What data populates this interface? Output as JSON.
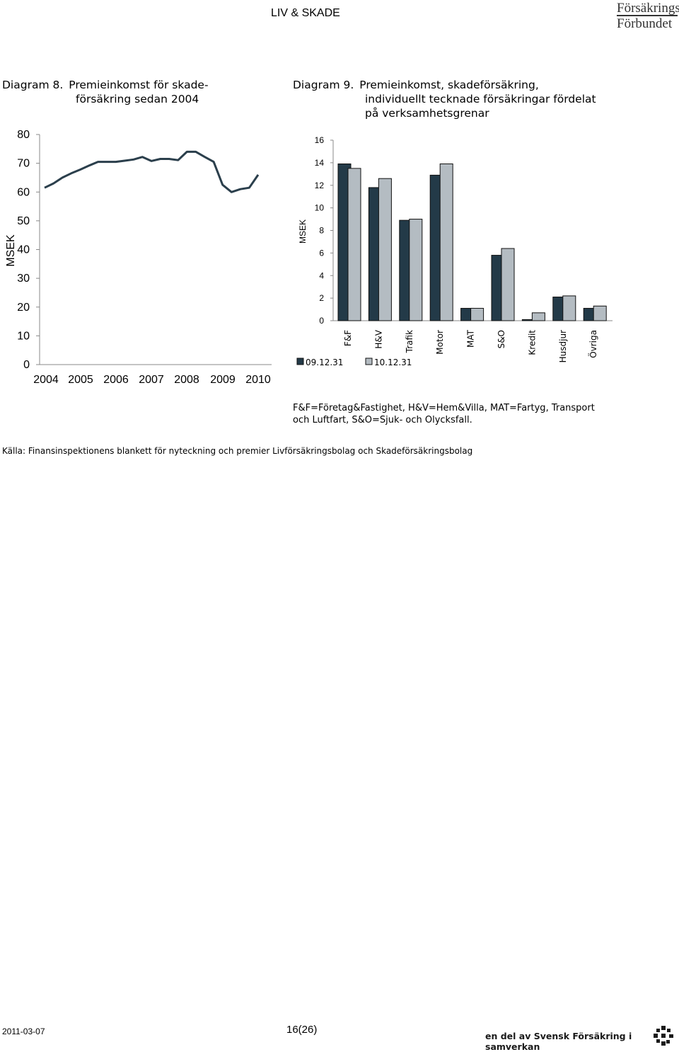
{
  "header": {
    "title": "LIV & SKADE",
    "logo_line1": "Försäkrings",
    "logo_line2": "Förbundet"
  },
  "diagram8": {
    "number": "Diagram 8.",
    "title_line1": "Premieinkomst för skade-",
    "title_line2": "försäkring sedan 2004"
  },
  "diagram9": {
    "number": "Diagram 9.",
    "title_line1": "Premieinkomst, skadeförsäkring,",
    "title_line2": "individuellt tecknade försäkringar fördelat",
    "title_line3": "på verksamhetsgrenar"
  },
  "chart_data": [
    {
      "type": "line",
      "ylabel": "MSEK",
      "ylim": [
        0,
        80
      ],
      "yticks": [
        "0",
        "10",
        "20",
        "30",
        "40",
        "50",
        "60",
        "70",
        "80"
      ],
      "xticks": [
        "2004",
        "2005",
        "2006",
        "2007",
        "2008",
        "2009",
        "2010"
      ],
      "grid": false,
      "color": "#2b3f4c",
      "values": [
        61.5,
        63,
        65,
        66.5,
        67.8,
        69.2,
        70.5,
        70.5,
        70.5,
        70.9,
        71.3,
        72.2,
        70.8,
        71.5,
        71.5,
        71.1,
        74,
        74,
        72.2,
        70.5,
        62.5,
        60,
        61,
        61.5,
        66
      ]
    },
    {
      "type": "bar",
      "ylabel": "MSEK",
      "ylim": [
        0,
        16
      ],
      "yticks": [
        "0",
        "2",
        "4",
        "6",
        "8",
        "10",
        "12",
        "14",
        "16"
      ],
      "categories": [
        "F&F",
        "H&V",
        "Trafik",
        "Motor",
        "MAT",
        "S&O",
        "Kredit",
        "Husdjur",
        "Övriga"
      ],
      "series": [
        {
          "name": "09.12.31",
          "color": "#233a48",
          "values": [
            13.9,
            11.8,
            8.9,
            12.9,
            1.1,
            5.8,
            0.1,
            2.1,
            1.1
          ]
        },
        {
          "name": "10.12.31",
          "color": "#b4bcc2",
          "values": [
            13.5,
            12.6,
            9.0,
            13.9,
            1.1,
            6.4,
            0.7,
            2.2,
            1.3
          ]
        }
      ],
      "legend": "bottom-left"
    }
  ],
  "abbreviations": {
    "line1": "F&F=Företag&Fastighet, H&V=Hem&Villa, MAT=Fartyg, Transport",
    "line2": "och Luftfart, S&O=Sjuk- och Olycksfall."
  },
  "source": "Källa: Finansinspektionens blankett för nyteckning och premier  Livförsäkringsbolag och Skadeförsäkringsbolag",
  "footer": {
    "date": "2011-03-07",
    "page": "16(26)",
    "slogan": "en del av Svensk Försäkring i samverkan"
  }
}
